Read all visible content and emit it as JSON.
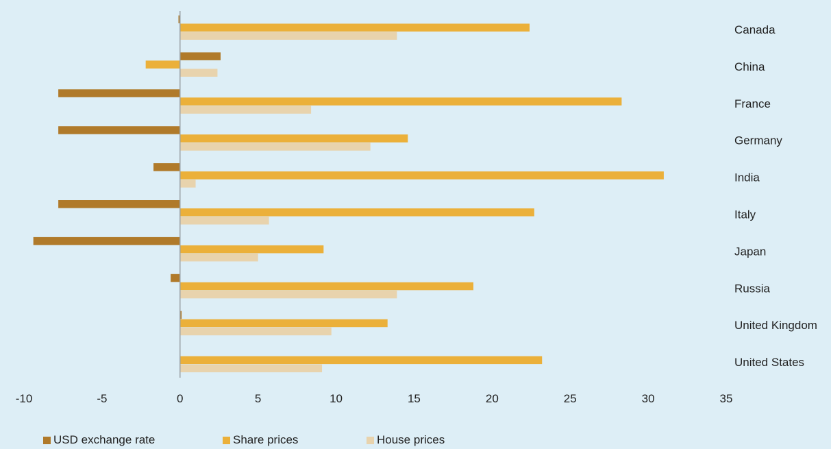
{
  "chart_data": {
    "type": "bar",
    "orientation": "horizontal",
    "categories": [
      "Canada",
      "China",
      "France",
      "Germany",
      "India",
      "Italy",
      "Japan",
      "Russia",
      "United Kingdom",
      "United States"
    ],
    "series": [
      {
        "name": "USD exchange rate",
        "color": "#b07a2a",
        "values": [
          -0.1,
          2.6,
          -7.8,
          -7.8,
          -1.7,
          -7.8,
          -9.4,
          -0.6,
          0.1,
          0.0
        ]
      },
      {
        "name": "Share prices",
        "color": "#ebb03a",
        "values": [
          22.4,
          -2.2,
          28.3,
          14.6,
          31.0,
          22.7,
          9.2,
          18.8,
          13.3,
          23.2
        ]
      },
      {
        "name": "House prices",
        "color": "#e8d3ad",
        "values": [
          13.9,
          2.4,
          8.4,
          12.2,
          1.0,
          5.7,
          5.0,
          13.9,
          9.7,
          9.1
        ]
      }
    ],
    "xlim": [
      -10,
      35
    ],
    "xticks": [
      "-10",
      "-5",
      "0",
      "5",
      "10",
      "15",
      "20",
      "25",
      "30",
      "35"
    ],
    "grid": false,
    "legend_position": "bottom"
  }
}
